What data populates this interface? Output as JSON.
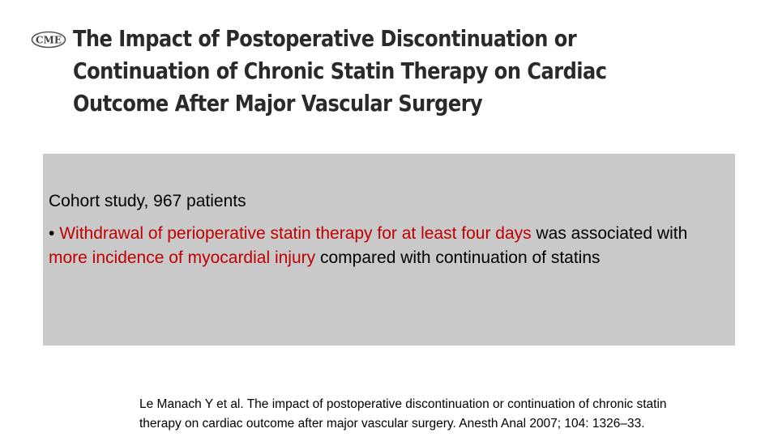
{
  "logo": {
    "icon": "cme-logo-icon",
    "text": "CME"
  },
  "title": {
    "line1": "The Impact of Postoperative Discontinuation or",
    "line2": "Continuation of Chronic Statin Therapy on Cardiac",
    "line3": "Outcome After Major Vascular Surgery"
  },
  "content": {
    "study_line": "Cohort study, 967 patients",
    "bullet_char": "•",
    "highlight1": "Withdrawal of perioperative statin therapy for at least four days",
    "text1": "was associated with",
    "highlight2": "more incidence of myocardial injury",
    "text2": "compared with continuation of statins"
  },
  "citation": {
    "line1": "Le Manach Y et al. The impact of postoperative discontinuation or continuation of chronic statin",
    "line2": "therapy on cardiac outcome after major vascular surgery. Anesth Anal 2007; 104: 1326–33."
  },
  "colors": {
    "background": "#ffffff",
    "box": "#c9c9c9",
    "highlight": "#c00000",
    "title": "#2a2a2a"
  }
}
